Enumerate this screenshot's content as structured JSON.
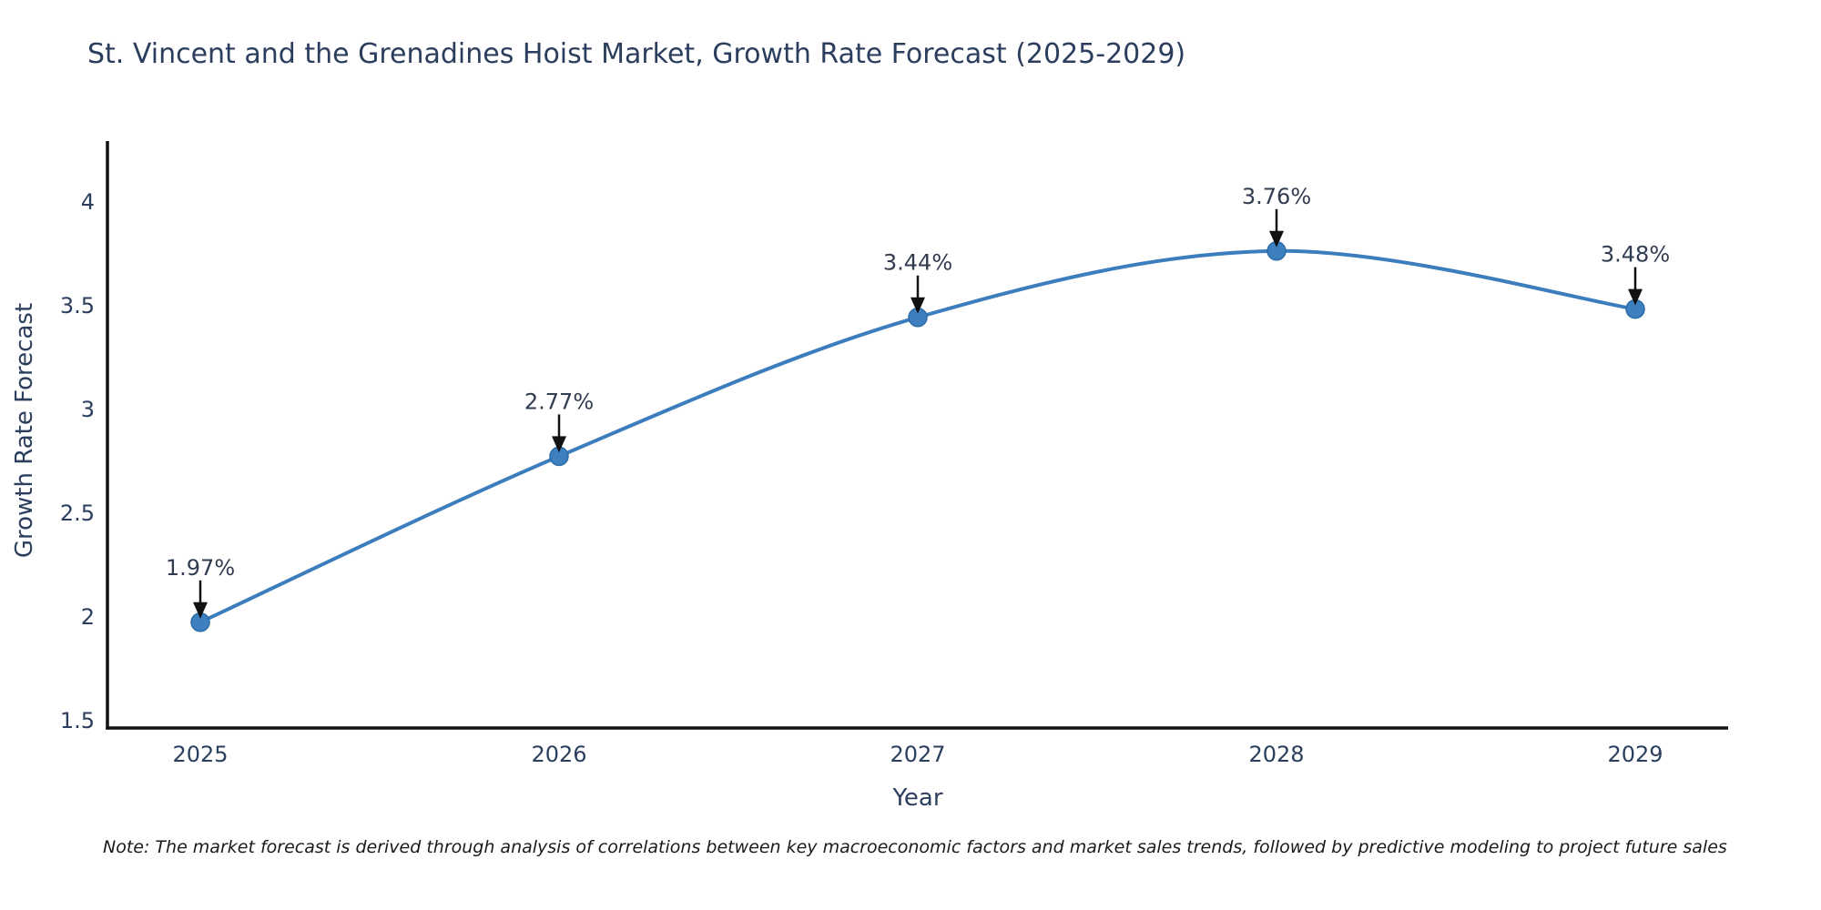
{
  "title": "St. Vincent and the Grenadines Hoist Market, Growth Rate Forecast (2025-2029)",
  "note": "Note: The market forecast is derived through analysis of correlations between key macroeconomic factors and market sales trends, followed by predictive modeling to project future sales",
  "chart_data": {
    "type": "line",
    "title": "St. Vincent and the Grenadines Hoist Market, Growth Rate Forecast (2025-2029)",
    "x": [
      "2025",
      "2026",
      "2027",
      "2028",
      "2029"
    ],
    "series": [
      {
        "name": "Growth Rate Forecast",
        "values": [
          1.97,
          2.77,
          3.44,
          3.76,
          3.48
        ]
      }
    ],
    "point_labels": [
      "1.97%",
      "2.77%",
      "3.44%",
      "3.76%",
      "3.48%"
    ],
    "xlabel": "Year",
    "ylabel": "Growth Rate Forecast",
    "y_ticks": [
      1.5,
      2,
      2.5,
      3,
      3.5,
      4
    ],
    "ylim": [
      1.46,
      4.29
    ],
    "grid": false,
    "legend": "none",
    "curve": "spline",
    "line_color": "#3c7dbd",
    "marker_color": "#3d80c0",
    "marker_edge_color": "#2f6ba6",
    "axis_color": "#111111",
    "tick_color": "#2c3e5d",
    "annotation_color": "#323c50",
    "arrow_color": "#111111"
  }
}
